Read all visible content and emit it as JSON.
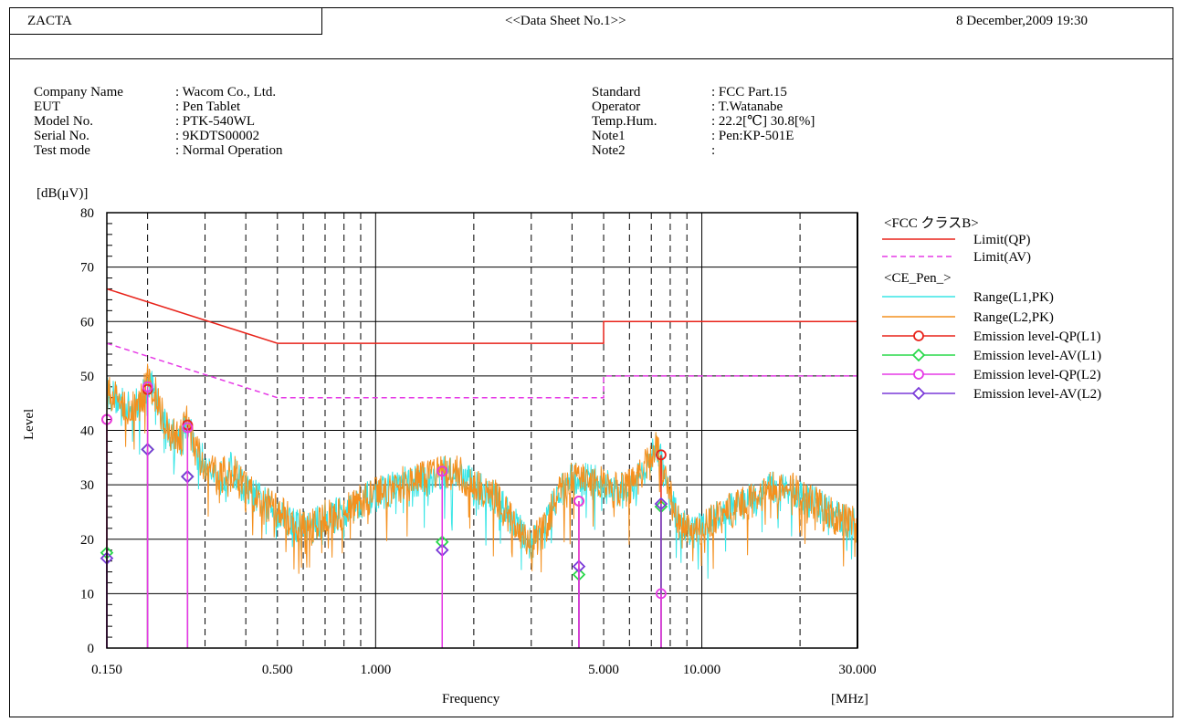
{
  "header": {
    "company": "ZACTA",
    "sheet_title": "<<Data Sheet No.1>>",
    "datetime": "8 December,2009 19:30"
  },
  "info_left": [
    {
      "label": "Company Name",
      "value": ": Wacom Co., Ltd."
    },
    {
      "label": "EUT",
      "value": ": Pen Tablet"
    },
    {
      "label": "Model No.",
      "value": ": PTK-540WL"
    },
    {
      "label": "Serial No.",
      "value": ": 9KDTS00002"
    },
    {
      "label": "Test mode",
      "value": ": Normal Operation"
    }
  ],
  "info_right": [
    {
      "label": "Standard",
      "value": ": FCC Part.15"
    },
    {
      "label": "Operator",
      "value": ": T.Watanabe"
    },
    {
      "label": "Temp.Hum.",
      "value": ": 22.2[℃]  30.8[%]"
    },
    {
      "label": "Note1",
      "value": ": Pen:KP-501E"
    },
    {
      "label": "Note2",
      "value": ":"
    }
  ],
  "colors": {
    "limit_qp": "#e8231a",
    "limit_av": "#e63ae6",
    "range_l1": "#38e6e6",
    "range_l2": "#f4901e",
    "qp_l1": "#e8231a",
    "av_l1": "#28d84a",
    "qp_l2": "#e63ae6",
    "av_l2": "#7a3ad8"
  },
  "chart_data": {
    "type": "line",
    "xscale": "log",
    "xlabel": "Frequency",
    "xunit": "[MHz]",
    "ylabel": "Level",
    "yunit": "[dB(μV)]",
    "xlim": [
      0.15,
      30
    ],
    "ylim": [
      0,
      80
    ],
    "xticks": [
      {
        "value": 0.15,
        "label": "0.150"
      },
      {
        "value": 0.5,
        "label": "0.500"
      },
      {
        "value": 1,
        "label": "1.000"
      },
      {
        "value": 5,
        "label": "5.000"
      },
      {
        "value": 10,
        "label": "10.000"
      },
      {
        "value": 30,
        "label": "30.000"
      }
    ],
    "yticks": [
      0,
      10,
      20,
      30,
      40,
      50,
      60,
      70,
      80
    ],
    "solid_vgrid": [
      1,
      10
    ],
    "dashed_vgrid": [
      0.2,
      0.3,
      0.4,
      0.5,
      0.6,
      0.7,
      0.8,
      0.9,
      2,
      3,
      4,
      5,
      6,
      7,
      8,
      9,
      20
    ],
    "legend": {
      "group1_title": "<FCC クラスB>",
      "group2_title": "<CE_Pen_>",
      "entries": [
        {
          "name": "Limit(QP)",
          "series": "limit_qp",
          "style": "solid"
        },
        {
          "name": "Limit(AV)",
          "series": "limit_av",
          "style": "dashed"
        },
        {
          "name": "Range(L1,PK)",
          "series": "range_l1",
          "style": "solid"
        },
        {
          "name": "Range(L2,PK)",
          "series": "range_l2",
          "style": "solid"
        },
        {
          "name": "Emission level-QP(L1)",
          "series": "qp_l1",
          "marker": "circle"
        },
        {
          "name": "Emission level-AV(L1)",
          "series": "av_l1",
          "marker": "diamond"
        },
        {
          "name": "Emission level-QP(L2)",
          "series": "qp_l2",
          "marker": "circle"
        },
        {
          "name": "Emission level-AV(L2)",
          "series": "av_l2",
          "marker": "diamond"
        }
      ]
    },
    "limit_qp": [
      [
        0.15,
        66
      ],
      [
        0.5,
        56
      ],
      [
        5,
        56
      ],
      [
        5,
        60
      ],
      [
        30,
        60
      ]
    ],
    "limit_av": [
      [
        0.15,
        56
      ],
      [
        0.5,
        46
      ],
      [
        5,
        46
      ],
      [
        5,
        50
      ],
      [
        30,
        50
      ]
    ],
    "range_envelope": [
      [
        0.15,
        47
      ],
      [
        0.16,
        46
      ],
      [
        0.175,
        44
      ],
      [
        0.19,
        45
      ],
      [
        0.2,
        49
      ],
      [
        0.21,
        47
      ],
      [
        0.23,
        40
      ],
      [
        0.25,
        38
      ],
      [
        0.265,
        42
      ],
      [
        0.28,
        36
      ],
      [
        0.3,
        34
      ],
      [
        0.33,
        31
      ],
      [
        0.36,
        33
      ],
      [
        0.4,
        29
      ],
      [
        0.45,
        27
      ],
      [
        0.5,
        25
      ],
      [
        0.56,
        23
      ],
      [
        0.63,
        22
      ],
      [
        0.7,
        24
      ],
      [
        0.8,
        25
      ],
      [
        0.9,
        27
      ],
      [
        1.0,
        28
      ],
      [
        1.2,
        30
      ],
      [
        1.4,
        31
      ],
      [
        1.6,
        32
      ],
      [
        1.8,
        32
      ],
      [
        2.0,
        30
      ],
      [
        2.3,
        28
      ],
      [
        2.6,
        24
      ],
      [
        3.0,
        19
      ],
      [
        3.3,
        22
      ],
      [
        3.6,
        28
      ],
      [
        4.0,
        31
      ],
      [
        4.5,
        31
      ],
      [
        5.0,
        30
      ],
      [
        5.5,
        29
      ],
      [
        6.2,
        30
      ],
      [
        6.8,
        34
      ],
      [
        7.3,
        37
      ],
      [
        7.8,
        30
      ],
      [
        8.5,
        23
      ],
      [
        9.3,
        21
      ],
      [
        10.5,
        23
      ],
      [
        12,
        25
      ],
      [
        14,
        27
      ],
      [
        16,
        29
      ],
      [
        18,
        30
      ],
      [
        20,
        28
      ],
      [
        23,
        26
      ],
      [
        26,
        24
      ],
      [
        29,
        23
      ],
      [
        30,
        22
      ]
    ],
    "qp_l1": [
      [
        0.15,
        42
      ],
      [
        0.2,
        47.5
      ],
      [
        0.265,
        41
      ],
      [
        1.6,
        32.5
      ],
      [
        4.2,
        27
      ],
      [
        7.5,
        35.5
      ]
    ],
    "av_l1": [
      [
        0.15,
        17.5
      ],
      [
        0.2,
        36.5
      ],
      [
        0.265,
        31.5
      ],
      [
        1.6,
        19.5
      ],
      [
        4.2,
        13.5
      ],
      [
        7.5,
        26
      ]
    ],
    "qp_l2": [
      [
        0.15,
        42
      ],
      [
        0.2,
        48
      ],
      [
        0.265,
        40.5
      ],
      [
        1.6,
        32.5
      ],
      [
        4.2,
        27
      ],
      [
        7.5,
        10
      ]
    ],
    "av_l2": [
      [
        0.15,
        16.5
      ],
      [
        0.2,
        36.5
      ],
      [
        0.265,
        31.5
      ],
      [
        1.6,
        18
      ],
      [
        4.2,
        15
      ],
      [
        7.5,
        26.5
      ]
    ]
  }
}
